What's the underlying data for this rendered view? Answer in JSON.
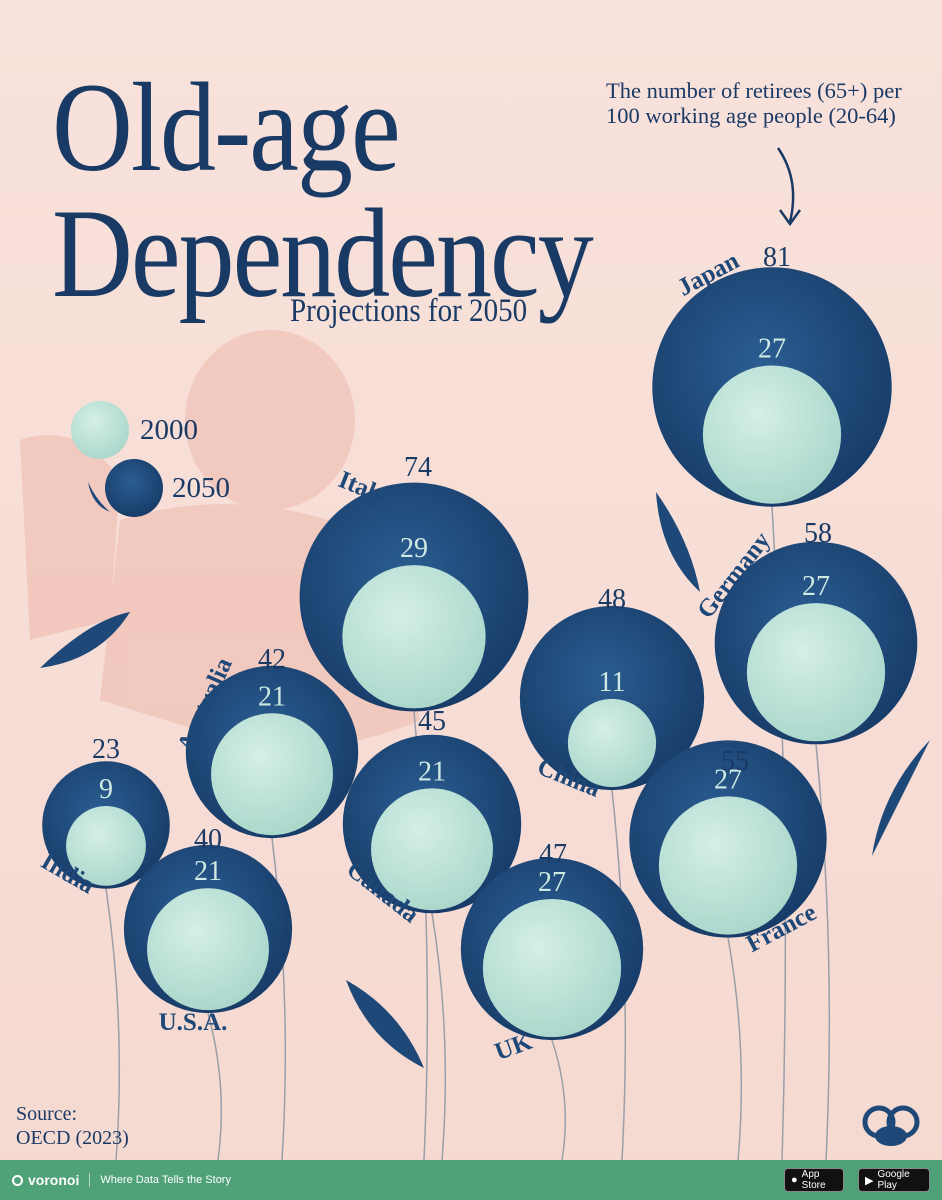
{
  "header": {
    "title_line1": "Old-age",
    "title_line2": "Dependency",
    "subtitle": "Projections for 2050",
    "note": "The number of retirees (65+) per 100 working age people (20-64)"
  },
  "legend": {
    "item_2000": "2000",
    "item_2050": "2050"
  },
  "colors": {
    "background": "#f6ddd6",
    "bubble_2050": "#1e4878",
    "bubble_2000": "#bfe3d9",
    "text": "#1a3a66",
    "footer": "#4fa177"
  },
  "chart_data": {
    "type": "bubble",
    "title": "Old-age Dependency",
    "subtitle": "Projections for 2050",
    "measure": "The number of retirees (65+) per 100 working age people (20-64)",
    "series": [
      {
        "name": "2000",
        "values": [
          27,
          29,
          27,
          11,
          27,
          21,
          21,
          9,
          21,
          27
        ]
      },
      {
        "name": "2050",
        "values": [
          81,
          74,
          58,
          48,
          55,
          42,
          45,
          23,
          40,
          47
        ]
      }
    ],
    "categories": [
      "Japan",
      "Italy",
      "Germany",
      "China",
      "France",
      "Australia",
      "Canada",
      "India",
      "U.S.A.",
      "UK"
    ],
    "points": [
      {
        "country": "Japan",
        "v2000": 27,
        "v2050": 81,
        "label2000": "27",
        "label2050": "81"
      },
      {
        "country": "Italy",
        "v2000": 29,
        "v2050": 74,
        "label2000": "29",
        "label2050": "74"
      },
      {
        "country": "Germany",
        "v2000": 27,
        "v2050": 58,
        "label2000": "27",
        "label2050": "58"
      },
      {
        "country": "China",
        "v2000": 11,
        "v2050": 48,
        "label2000": "11",
        "label2050": "48"
      },
      {
        "country": "France",
        "v2000": 27,
        "v2050": 55,
        "label2000": "27",
        "label2050": "55"
      },
      {
        "country": "Australia",
        "v2000": 21,
        "v2050": 42,
        "label2000": "21",
        "label2050": "42"
      },
      {
        "country": "Canada",
        "v2000": 21,
        "v2050": 45,
        "label2000": "21",
        "label2050": "45"
      },
      {
        "country": "India",
        "v2000": 9,
        "v2050": 23,
        "label2000": "9",
        "label2050": "23"
      },
      {
        "country": "U.S.A.",
        "v2000": 21,
        "v2050": 40,
        "label2000": "21",
        "label2050": "40"
      },
      {
        "country": "UK",
        "v2000": 27,
        "v2050": 47,
        "label2000": "27",
        "label2050": "47"
      }
    ]
  },
  "source": {
    "line1": "Source:",
    "line2": "OECD (2023)"
  },
  "footer": {
    "brand": "voronoi",
    "tagline": "Where Data Tells the Story",
    "app_store": "App Store",
    "google_play": "Google Play"
  }
}
